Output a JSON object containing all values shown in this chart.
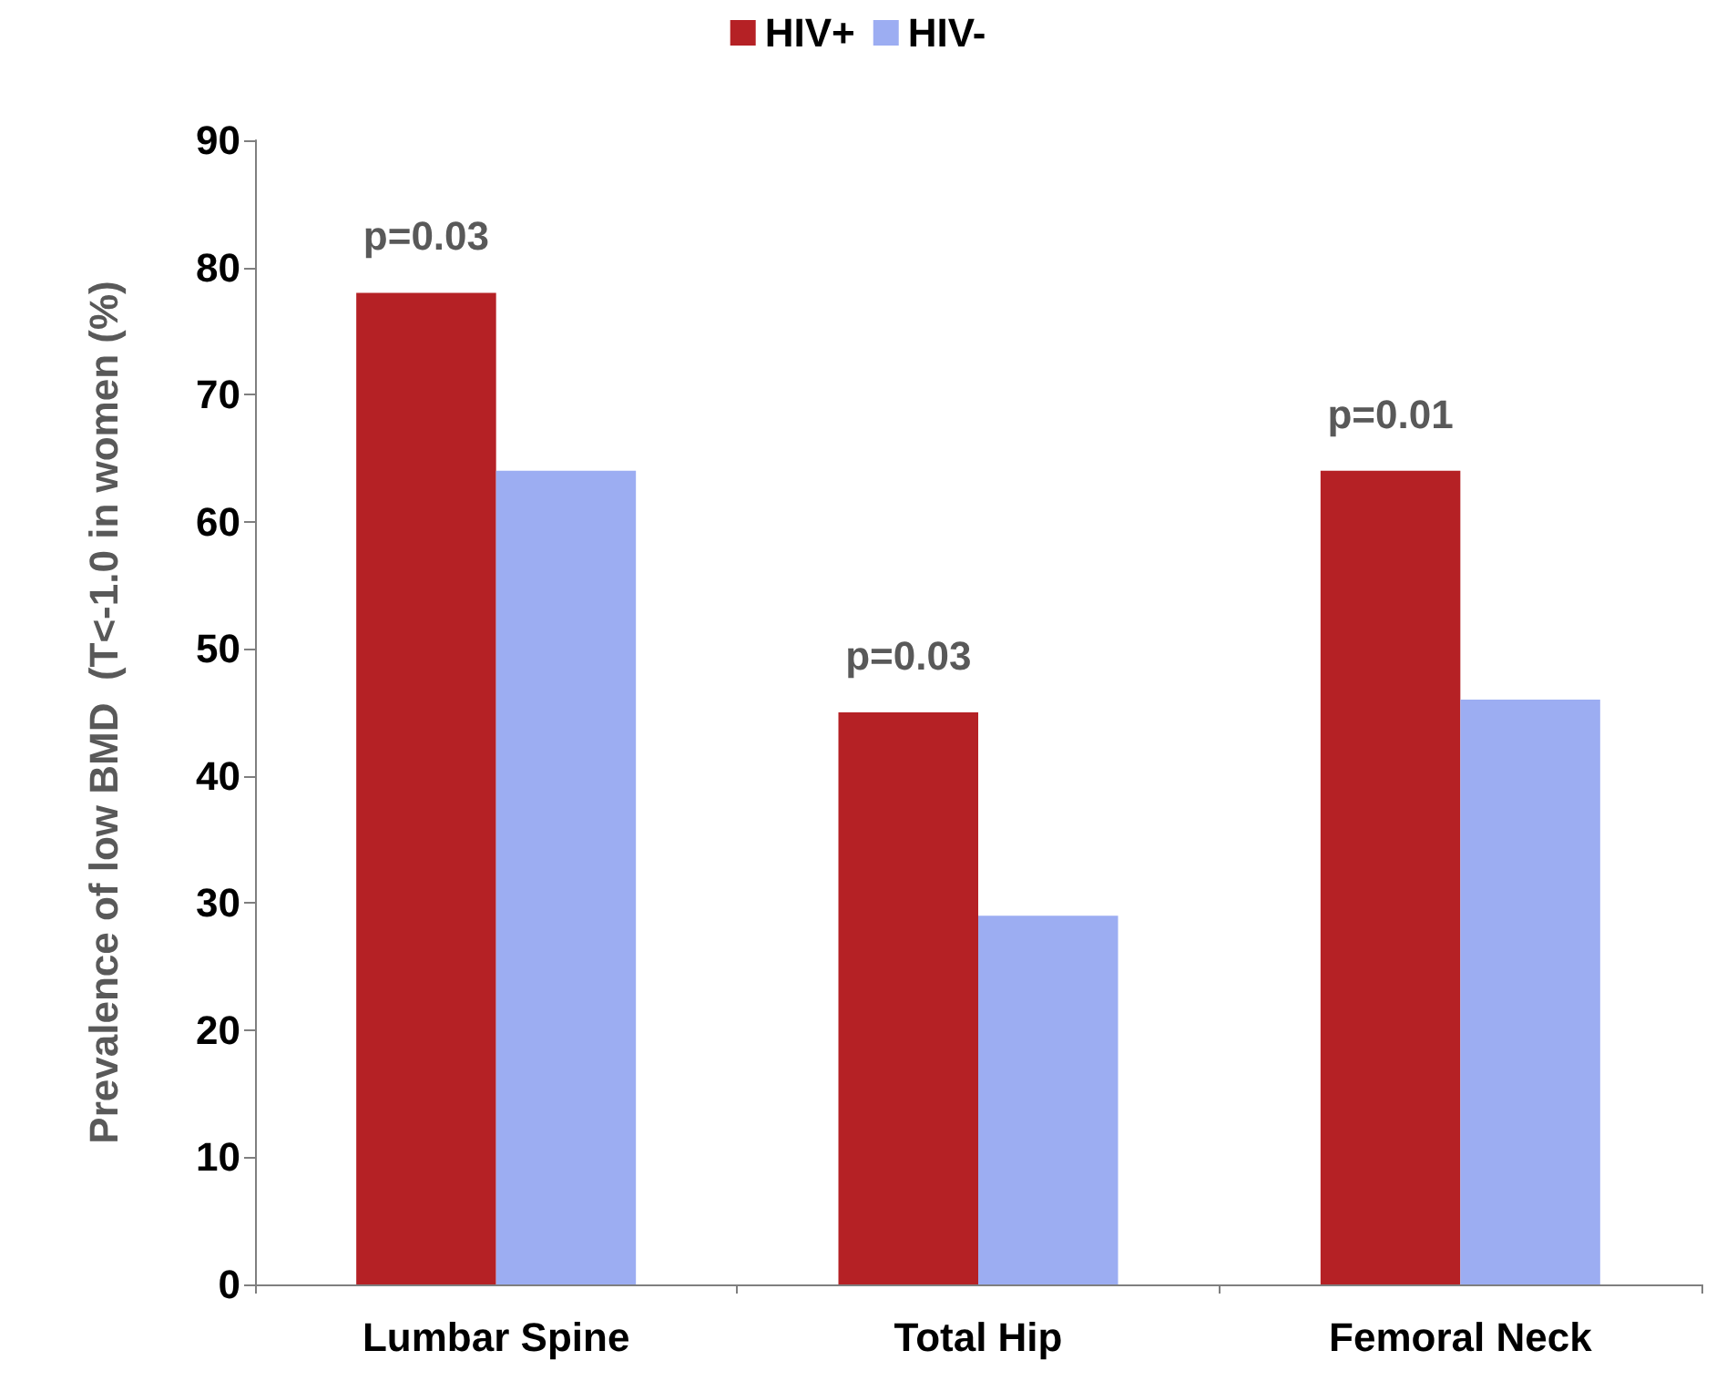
{
  "chart_data": {
    "type": "bar",
    "ylabel": "Prevalence of low BMD  (T<-1.0 in women (%)",
    "categories": [
      "Lumbar Spine",
      "Total Hip",
      "Femoral Neck"
    ],
    "series": [
      {
        "name": "HIV+",
        "color": "#b52125",
        "values": [
          78,
          45,
          64
        ]
      },
      {
        "name": "HIV-",
        "color": "#9cadf2",
        "values": [
          64,
          29,
          46
        ]
      }
    ],
    "ylim": [
      0,
      90
    ],
    "yticks": [
      0,
      10,
      20,
      30,
      40,
      50,
      60,
      70,
      80,
      90
    ],
    "grid": false,
    "legend": "top",
    "annotations": [
      {
        "text": "p=0.03",
        "x": "Lumbar Spine",
        "y": 78
      },
      {
        "text": "p=0.03",
        "x": "Total Hip",
        "y": 45
      },
      {
        "text": "p=0.01",
        "x": "Femoral Neck",
        "y": 64
      }
    ]
  }
}
